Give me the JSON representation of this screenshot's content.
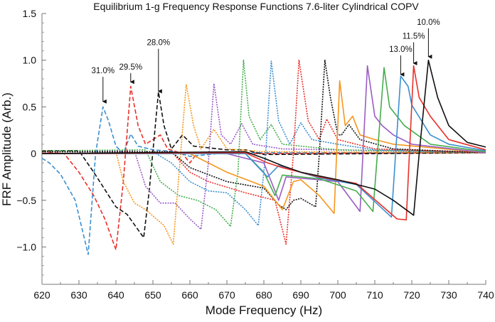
{
  "chart_data": {
    "type": "line",
    "title": "Equilibrium 1-g Frequency Response Functions 7.6-liter Cylindrical COPV",
    "xlabel": "Mode Frequency (Hz)",
    "ylabel": "FRF Amplitude (Arb.)",
    "xlim": [
      620,
      740
    ],
    "ylim": [
      -1.4,
      1.5
    ],
    "xticks": [
      "620",
      "630",
      "640",
      "650",
      "660",
      "670",
      "680",
      "690",
      "700",
      "710",
      "720",
      "730",
      "740"
    ],
    "yticks": [
      {
        "v": 1.5,
        "label": "1.5"
      },
      {
        "v": 1.0,
        "label": "1.0"
      },
      {
        "v": 0.5,
        "label": "0.5"
      },
      {
        "v": 0,
        "label": "0"
      },
      {
        "v": -0.5,
        "label": "−0.5"
      },
      {
        "v": -1.0,
        "label": "−1.0"
      }
    ],
    "grid": false,
    "legend": "none",
    "series": [
      {
        "color": "#3b8fd0",
        "dash": "dashed",
        "points": [
          [
            620,
            -0.05
          ],
          [
            622,
            -0.1
          ],
          [
            625,
            -0.22
          ],
          [
            629,
            -0.5
          ],
          [
            632.5,
            -1.08
          ],
          [
            634.5,
            0.0
          ],
          [
            636.5,
            0.5
          ],
          [
            638,
            0.35
          ],
          [
            640,
            0.08
          ],
          [
            642,
            0.0
          ],
          [
            644,
            0.21
          ],
          [
            646,
            0.08
          ],
          [
            650,
            0.04
          ],
          [
            656,
            0.02
          ],
          [
            660,
            -0.03
          ],
          [
            670,
            0.01
          ],
          [
            740,
            0.01
          ]
        ]
      },
      {
        "color": "#e8302a",
        "dash": "dashed",
        "points": [
          [
            620,
            0.02
          ],
          [
            626,
            0.0
          ],
          [
            630,
            -0.2
          ],
          [
            634,
            -0.45
          ],
          [
            637,
            -0.7
          ],
          [
            640,
            -1.03
          ],
          [
            642,
            -0.3
          ],
          [
            644,
            0.72
          ],
          [
            646,
            0.3
          ],
          [
            648,
            0.1
          ],
          [
            652,
            0.2
          ],
          [
            654,
            0.05
          ],
          [
            658,
            0.0
          ],
          [
            660,
            -0.1
          ],
          [
            662,
            0.01
          ],
          [
            680,
            0.0
          ],
          [
            740,
            0.01
          ]
        ]
      },
      {
        "color": "#111111",
        "dash": "dashed",
        "points": [
          [
            620,
            0.03
          ],
          [
            630,
            0.03
          ],
          [
            634,
            -0.2
          ],
          [
            640,
            -0.57
          ],
          [
            643,
            -0.65
          ],
          [
            647.5,
            -0.9
          ],
          [
            649,
            -0.4
          ],
          [
            651.5,
            0.66
          ],
          [
            653,
            0.3
          ],
          [
            655,
            0.05
          ],
          [
            658,
            0.2
          ],
          [
            661,
            0.08
          ],
          [
            670,
            0.04
          ],
          [
            675,
            0.04
          ],
          [
            680,
            -0.01
          ],
          [
            740,
            0.01
          ]
        ]
      },
      {
        "color": "#f5961d",
        "dash": "dotted",
        "points": [
          [
            620,
            0.03
          ],
          [
            640,
            0.02
          ],
          [
            642,
            -0.3
          ],
          [
            645,
            -0.53
          ],
          [
            648,
            -0.6
          ],
          [
            653,
            -0.77
          ],
          [
            655.5,
            -0.97
          ],
          [
            657.5,
            0.0
          ],
          [
            659,
            0.74
          ],
          [
            661,
            0.3
          ],
          [
            663,
            0.05
          ],
          [
            666.5,
            0.26
          ],
          [
            670,
            0.05
          ],
          [
            680,
            0.02
          ],
          [
            740,
            0.01
          ]
        ]
      },
      {
        "color": "#9a5cc4",
        "dash": "dotted",
        "points": [
          [
            620,
            0.03
          ],
          [
            645,
            0.03
          ],
          [
            648,
            -0.35
          ],
          [
            652,
            -0.53
          ],
          [
            656,
            -0.53
          ],
          [
            660,
            -0.7
          ],
          [
            663,
            -0.81
          ],
          [
            665,
            -0.1
          ],
          [
            666.5,
            0.75
          ],
          [
            668.5,
            0.2
          ],
          [
            671,
            0.1
          ],
          [
            674,
            0.32
          ],
          [
            677,
            0.1
          ],
          [
            685,
            0.05
          ],
          [
            740,
            0.01
          ]
        ]
      },
      {
        "color": "#45ad4c",
        "dash": "dotted",
        "points": [
          [
            620,
            0.03
          ],
          [
            648,
            0.04
          ],
          [
            652,
            -0.3
          ],
          [
            657,
            -0.45
          ],
          [
            662,
            -0.5
          ],
          [
            667,
            -0.6
          ],
          [
            671,
            -0.78
          ],
          [
            673,
            -0.2
          ],
          [
            674.5,
            1.0
          ],
          [
            676,
            0.4
          ],
          [
            679,
            0.15
          ],
          [
            682,
            0.31
          ],
          [
            685,
            0.1
          ],
          [
            690,
            0.08
          ],
          [
            700,
            0.04
          ],
          [
            740,
            0.01
          ]
        ]
      },
      {
        "color": "#3b8fd0",
        "dash": "dotted",
        "points": [
          [
            620,
            0.02
          ],
          [
            650,
            0.02
          ],
          [
            655,
            -0.1
          ],
          [
            660,
            -0.3
          ],
          [
            665,
            -0.4
          ],
          [
            670,
            -0.42
          ],
          [
            675,
            -0.6
          ],
          [
            678.5,
            -0.77
          ],
          [
            680.5,
            0.0
          ],
          [
            682,
            0.99
          ],
          [
            684,
            0.35
          ],
          [
            687,
            0.1
          ],
          [
            690,
            0.33
          ],
          [
            693,
            0.15
          ],
          [
            700,
            0.1
          ],
          [
            710,
            0.04
          ],
          [
            740,
            0.01
          ]
        ]
      },
      {
        "color": "#e8302a",
        "dash": "dotted",
        "points": [
          [
            620,
            0.02
          ],
          [
            655,
            0.02
          ],
          [
            660,
            -0.2
          ],
          [
            665,
            -0.3
          ],
          [
            675,
            -0.42
          ],
          [
            683,
            -0.5
          ],
          [
            686,
            -0.97
          ],
          [
            688,
            0.0
          ],
          [
            689.5,
            1.0
          ],
          [
            692,
            0.35
          ],
          [
            695,
            0.15
          ],
          [
            697,
            0.37
          ],
          [
            700,
            0.15
          ],
          [
            710,
            0.05
          ],
          [
            740,
            0.01
          ]
        ]
      },
      {
        "color": "#111111",
        "dash": "dotted",
        "points": [
          [
            620,
            0.02
          ],
          [
            655,
            0.02
          ],
          [
            660,
            -0.15
          ],
          [
            670,
            -0.3
          ],
          [
            680,
            -0.37
          ],
          [
            684,
            -0.55
          ],
          [
            686,
            -0.6
          ],
          [
            688,
            -0.5
          ],
          [
            690,
            -0.48
          ],
          [
            694,
            -0.57
          ],
          [
            695,
            0.0
          ],
          [
            696.5,
            1.0
          ],
          [
            698,
            0.6
          ],
          [
            700,
            0.2
          ],
          [
            701,
            0.2
          ],
          [
            703,
            0.31
          ],
          [
            706,
            0.15
          ],
          [
            715,
            0.05
          ],
          [
            740,
            0.01
          ]
        ]
      },
      {
        "color": "#f5961d",
        "dash": "solid",
        "points": [
          [
            620,
            0.0
          ],
          [
            660,
            0.0
          ],
          [
            670,
            -0.2
          ],
          [
            680,
            -0.35
          ],
          [
            685,
            -0.6
          ],
          [
            688,
            -0.3
          ],
          [
            690,
            -0.28
          ],
          [
            695,
            -0.45
          ],
          [
            699,
            -0.64
          ],
          [
            700.5,
            0.78
          ],
          [
            702,
            0.3
          ],
          [
            704,
            0.4
          ],
          [
            706,
            0.2
          ],
          [
            710,
            0.15
          ],
          [
            715,
            0.1
          ],
          [
            740,
            0.01
          ]
        ]
      },
      {
        "color": "#9a5cc4",
        "dash": "solid",
        "points": [
          [
            620,
            0.0
          ],
          [
            670,
            0.0
          ],
          [
            680,
            -0.1
          ],
          [
            684,
            -0.5
          ],
          [
            686,
            -0.25
          ],
          [
            695,
            -0.28
          ],
          [
            700,
            -0.3
          ],
          [
            706,
            -0.62
          ],
          [
            708,
            0.94
          ],
          [
            710,
            0.4
          ],
          [
            712,
            0.3
          ],
          [
            715,
            0.2
          ],
          [
            720,
            0.1
          ],
          [
            740,
            0.01
          ]
        ]
      },
      {
        "color": "#45ad4c",
        "dash": "solid",
        "points": [
          [
            620,
            0.0
          ],
          [
            675,
            0.0
          ],
          [
            680,
            -0.2
          ],
          [
            683,
            -0.45
          ],
          [
            685,
            -0.23
          ],
          [
            695,
            -0.27
          ],
          [
            705,
            -0.4
          ],
          [
            709.5,
            -0.62
          ],
          [
            712.5,
            0.92
          ],
          [
            714,
            0.5
          ],
          [
            718,
            0.3
          ],
          [
            725,
            0.1
          ],
          [
            740,
            0.02
          ]
        ]
      },
      {
        "color": "#3b8fd0",
        "dash": "solid",
        "points": [
          [
            620,
            0.0
          ],
          [
            675,
            0.0
          ],
          [
            681,
            -0.25
          ],
          [
            684,
            -0.13
          ],
          [
            695,
            -0.26
          ],
          [
            705,
            -0.33
          ],
          [
            714.5,
            -0.68
          ],
          [
            717,
            0.83
          ],
          [
            719,
            0.72
          ],
          [
            720,
            0.52
          ],
          [
            725,
            0.2
          ],
          [
            730,
            0.1
          ],
          [
            740,
            0.03
          ]
        ]
      },
      {
        "color": "#e8302a",
        "dash": "solid",
        "points": [
          [
            620,
            0.0
          ],
          [
            675,
            0.01
          ],
          [
            681,
            -0.1
          ],
          [
            685,
            -0.15
          ],
          [
            695,
            -0.25
          ],
          [
            705,
            -0.32
          ],
          [
            716,
            -0.7
          ],
          [
            718.5,
            -0.71
          ],
          [
            720.5,
            0.94
          ],
          [
            722,
            0.6
          ],
          [
            725,
            0.4
          ],
          [
            730,
            0.15
          ],
          [
            740,
            0.04
          ]
        ]
      },
      {
        "color": "#111111",
        "dash": "solid",
        "points": [
          [
            620,
            0.0
          ],
          [
            675,
            0.02
          ],
          [
            680,
            -0.05
          ],
          [
            685,
            -0.13
          ],
          [
            690,
            -0.2
          ],
          [
            700,
            -0.28
          ],
          [
            710,
            -0.38
          ],
          [
            715,
            -0.5
          ],
          [
            720.5,
            -0.66
          ],
          [
            722,
            0.0
          ],
          [
            724.5,
            1.0
          ],
          [
            727,
            0.6
          ],
          [
            730,
            0.3
          ],
          [
            735,
            0.12
          ],
          [
            740,
            0.07
          ]
        ]
      }
    ],
    "annotations": [
      {
        "text": "31.0%",
        "x": 636.5,
        "y": 0.55,
        "label_y": 0.86
      },
      {
        "text": "29.5%",
        "x": 644,
        "y": 0.76,
        "label_y": 0.9
      },
      {
        "text": "28.0%",
        "x": 651.5,
        "y": 0.66,
        "label_y": 1.16
      },
      {
        "text": "13.0%",
        "x": 717,
        "y": 0.84,
        "label_y": 1.09
      },
      {
        "text": "11.5%",
        "x": 720.5,
        "y": 0.96,
        "label_y": 1.23
      },
      {
        "text": "10.0%",
        "x": 724.5,
        "y": 1.03,
        "label_y": 1.38
      }
    ]
  }
}
